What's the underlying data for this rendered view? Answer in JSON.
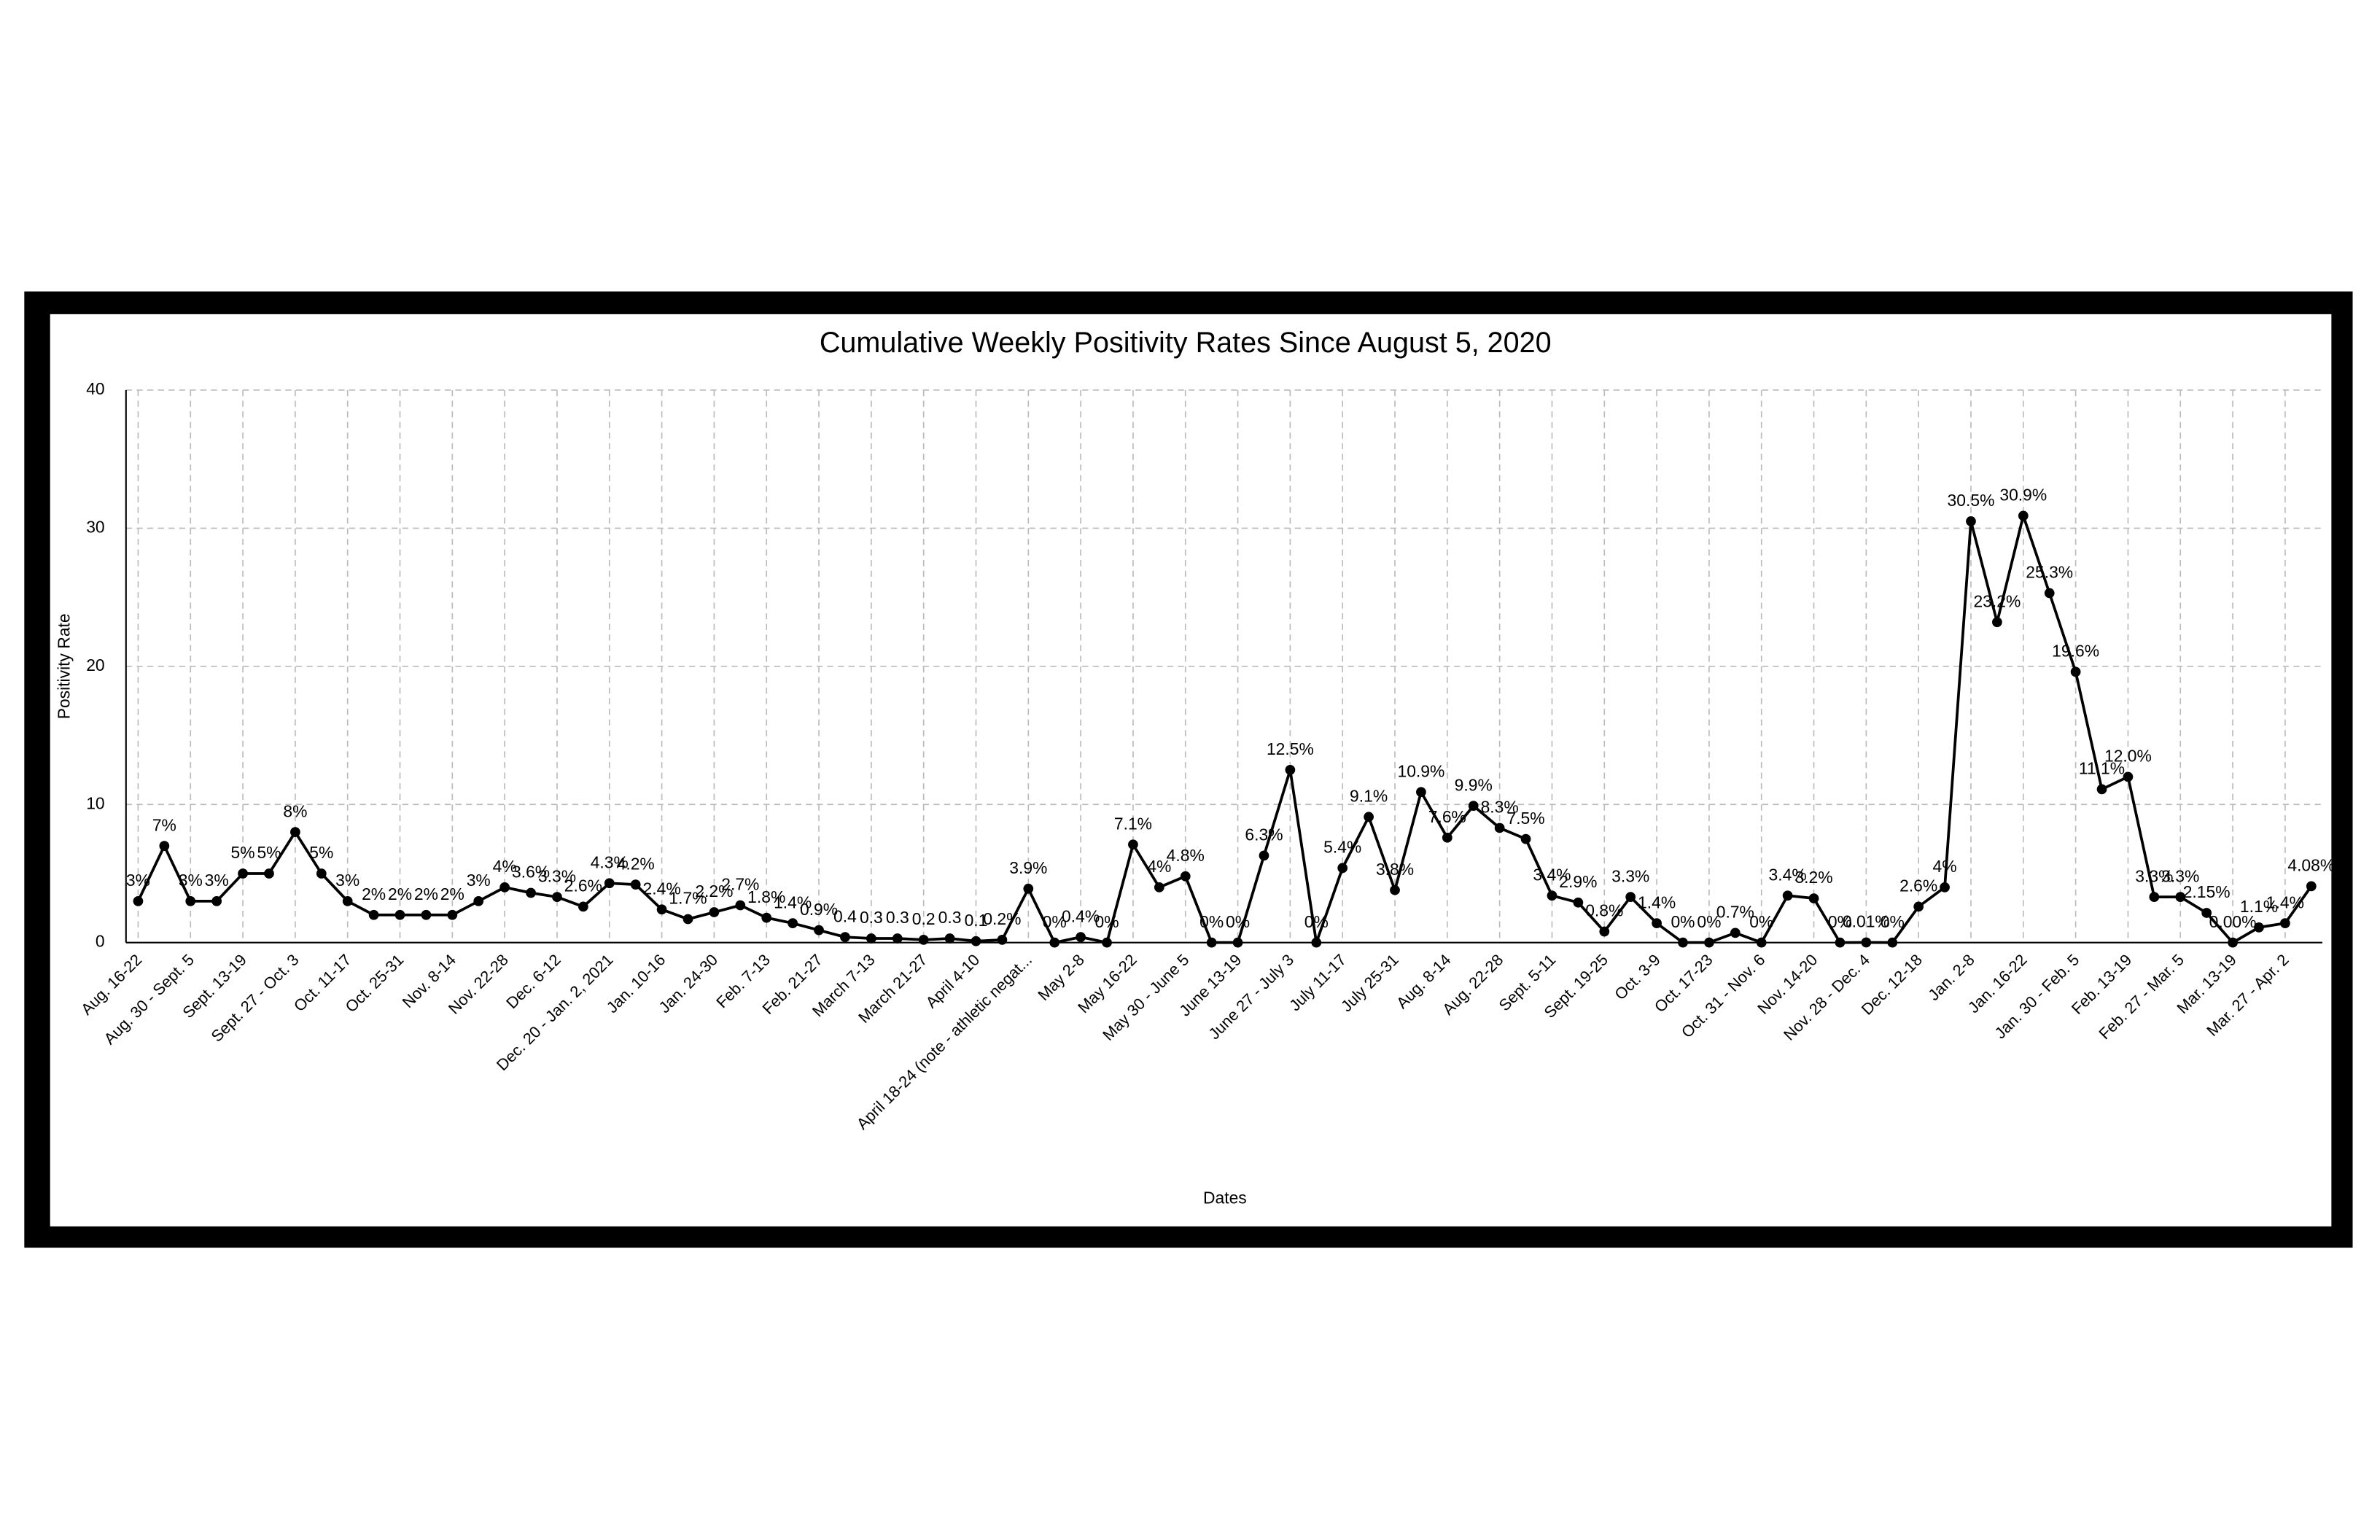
{
  "chart_data": {
    "type": "line",
    "title": "Cumulative Weekly Positivity Rates Since August 5, 2020",
    "x_label": "Dates",
    "y_label": "Positivity Rate",
    "categories": [
      "Aug. 16-22",
      null,
      "Aug. 30 - Sept. 5",
      null,
      "Sept. 13-19",
      null,
      "Sept. 27 - Oct. 3",
      null,
      "Oct. 11-17",
      null,
      "Oct. 25-31",
      null,
      "Nov. 8-14",
      null,
      "Nov. 22-28",
      null,
      "Dec. 6-12",
      null,
      "Dec. 20 - Jan. 2, 2021",
      null,
      "Jan. 10-16",
      null,
      "Jan. 24-30",
      null,
      "Feb. 7-13",
      null,
      "Feb. 21-27",
      null,
      "March 7-13",
      null,
      "March 21-27",
      null,
      "April 4-10",
      null,
      "April 18-24 (note - athletic negat...",
      null,
      "May 2-8",
      null,
      "May 16-22",
      null,
      "May 30 - June 5",
      null,
      "June 13-19",
      null,
      "June 27 - July 3",
      null,
      "July 11-17",
      null,
      "July 25-31",
      null,
      "Aug. 8-14",
      null,
      "Aug. 22-28",
      null,
      "Sept. 5-11",
      null,
      "Sept. 19-25",
      null,
      "Oct. 3-9",
      null,
      "Oct. 17-23",
      null,
      "Oct. 31 - Nov. 6",
      null,
      "Nov. 14-20",
      null,
      "Nov. 28 - Dec. 4",
      null,
      "Dec. 12-18",
      null,
      "Jan. 2-8",
      null,
      "Jan. 16-22",
      null,
      "Jan. 30 - Feb. 5",
      null,
      "Feb. 13-19",
      null,
      "Feb. 27 - Mar. 5",
      null,
      "Mar. 13-19",
      null,
      "Mar. 27 - Apr. 2",
      null
    ],
    "series": [
      {
        "name": "Positivity Rate",
        "color": "#000000",
        "values": [
          3,
          7,
          3,
          3,
          5,
          5,
          8,
          5,
          3,
          2,
          2,
          2,
          2,
          3,
          4,
          3.6,
          3.3,
          2.6,
          4.3,
          4.2,
          2.4,
          1.7,
          2.2,
          2.7,
          1.8,
          1.4,
          0.9,
          0.4,
          0.3,
          0.3,
          0.2,
          0.3,
          0.1,
          0.2,
          3.9,
          0,
          0.4,
          0,
          7.1,
          4,
          4.8,
          0,
          0,
          6.3,
          12.5,
          0,
          5.4,
          9.1,
          3.8,
          10.9,
          7.6,
          9.9,
          8.3,
          7.5,
          3.4,
          2.9,
          0.8,
          3.3,
          1.4,
          0,
          0,
          0.7,
          0,
          3.4,
          3.2,
          0,
          0.01,
          0,
          2.6,
          4,
          30.5,
          23.2,
          30.9,
          25.3,
          19.6,
          11.1,
          12,
          3.3,
          3.3,
          2.15,
          0,
          1.1,
          1.4,
          4.08
        ],
        "value_labels": [
          "3%",
          "7%",
          "3%",
          "3%",
          "5%",
          "5%",
          "8%",
          "5%",
          "3%",
          "2%",
          "2%",
          "2%",
          "2%",
          "3%",
          "4%",
          "3.6%",
          "3.3%",
          "2.6%",
          "4.3%",
          "4.2%",
          "2.4%",
          "1.7%",
          "2.2%",
          "2.7%",
          "1.8%",
          "1.4%",
          "0.9%",
          "0.4",
          "0.3",
          "0.3",
          "0.2",
          "0.3",
          "0.1",
          "0.2%",
          "3.9%",
          "0%",
          "0.4%",
          "0%",
          "7.1%",
          "4%",
          "4.8%",
          "0%",
          "0%",
          "6.3%",
          "12.5%",
          "0%",
          "5.4%",
          "9.1%",
          "3.8%",
          "10.9%",
          "7.6%",
          "9.9%",
          "8.3%",
          "7.5%",
          "3.4%",
          "2.9%",
          "0.8%",
          "3.3%",
          "1.4%",
          "0%",
          "0%",
          "0.7%",
          "0%",
          "3.4%",
          "3.2%",
          "0%",
          "0.01%",
          "0%",
          "2.6%",
          "4%",
          "30.5%",
          "23.2%",
          "30.9%",
          "25.3%",
          "19.6%",
          "11.1%",
          "12.0%",
          "3.3%",
          "3.3%",
          "2.15%",
          "0.00%",
          "1.1%",
          "1.4%",
          "4.08%"
        ]
      }
    ],
    "ylim": [
      0,
      40
    ],
    "yticks": [
      0,
      10,
      20,
      30,
      40
    ],
    "grid": true
  }
}
